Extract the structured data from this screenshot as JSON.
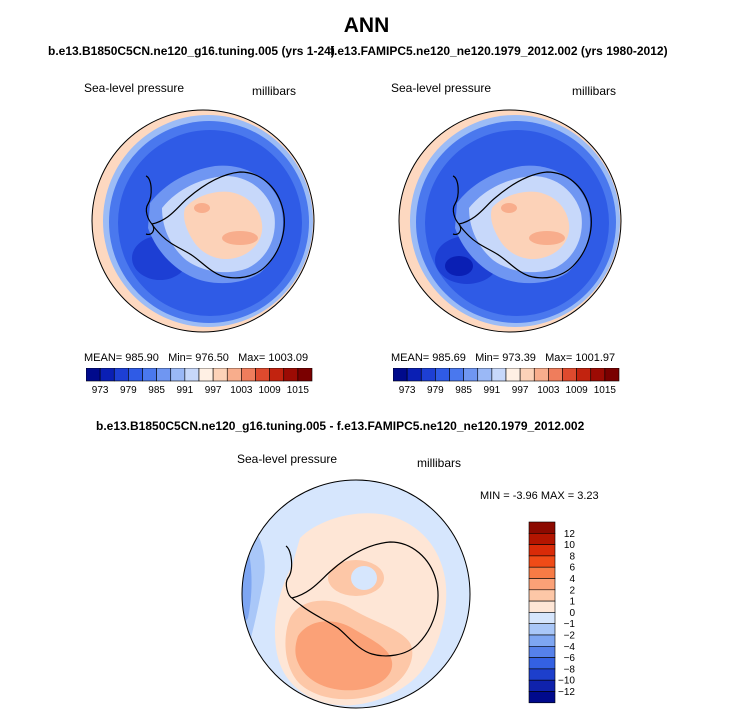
{
  "title": "ANN",
  "panels": [
    {
      "case_title": "b.e13.B1850C5CN.ne120_g16.tuning.005 (yrs 1-24)",
      "variable": "Sea-level pressure",
      "units": "millibars",
      "mean_text": "MEAN= 985.90",
      "min_text": "Min= 976.50",
      "max_text": "Max= 1003.09"
    },
    {
      "case_title": "f.e13.FAMIPC5.ne120_ne120.1979_2012.002 (yrs 1980-2012)",
      "variable": "Sea-level pressure",
      "units": "millibars",
      "mean_text": "MEAN= 985.69",
      "min_text": "Min= 973.39",
      "max_text": "Max= 1001.97"
    }
  ],
  "diff": {
    "case_title": "b.e13.B1850C5CN.ne120_g16.tuning.005 - f.e13.FAMIPC5.ne120_ne120.1979_2012.002",
    "variable": "Sea-level pressure",
    "units": "millibars",
    "stats_text": "MIN = -3.96 MAX =  3.23"
  },
  "chart_data": [
    {
      "type": "heatmap",
      "map": "south-polar-stereographic",
      "title": "Sea-level pressure",
      "units": "millibars",
      "stats": {
        "mean": 985.9,
        "min": 976.5,
        "max": 1003.09
      },
      "colorbar": {
        "levels": [
          973,
          976,
          979,
          982,
          985,
          988,
          991,
          994,
          997,
          1000,
          1003,
          1006,
          1009,
          1012,
          1015
        ],
        "tick_labels": [
          "973",
          "979",
          "985",
          "991",
          "997",
          "1003",
          "1009",
          "1015"
        ],
        "colors": [
          "#000a8c",
          "#0a1fb4",
          "#1d3fd4",
          "#2f5be6",
          "#4a78ee",
          "#6f96f2",
          "#9ab8f6",
          "#c7d8fa",
          "#fff0e4",
          "#fcd2b8",
          "#f8ad8c",
          "#ef7d5c",
          "#de4a2e",
          "#c2230f",
          "#9c0b04",
          "#7a0000"
        ]
      }
    },
    {
      "type": "heatmap",
      "map": "south-polar-stereographic",
      "title": "Sea-level pressure",
      "units": "millibars",
      "stats": {
        "mean": 985.69,
        "min": 973.39,
        "max": 1001.97
      },
      "colorbar": {
        "levels": [
          973,
          976,
          979,
          982,
          985,
          988,
          991,
          994,
          997,
          1000,
          1003,
          1006,
          1009,
          1012,
          1015
        ],
        "tick_labels": [
          "973",
          "979",
          "985",
          "991",
          "997",
          "1003",
          "1009",
          "1015"
        ],
        "colors": [
          "#000a8c",
          "#0a1fb4",
          "#1d3fd4",
          "#2f5be6",
          "#4a78ee",
          "#6f96f2",
          "#9ab8f6",
          "#c7d8fa",
          "#fff0e4",
          "#fcd2b8",
          "#f8ad8c",
          "#ef7d5c",
          "#de4a2e",
          "#c2230f",
          "#9c0b04",
          "#7a0000"
        ]
      }
    },
    {
      "type": "heatmap",
      "map": "south-polar-stereographic",
      "title": "Sea-level pressure",
      "units": "millibars",
      "stats": {
        "min": -3.96,
        "max": 3.23
      },
      "colorbar": {
        "orientation": "vertical",
        "levels": [
          -12,
          -10,
          -8,
          -6,
          -4,
          -2,
          -1,
          0,
          1,
          2,
          4,
          6,
          8,
          10,
          12
        ],
        "tick_labels": [
          "12",
          "10",
          "8",
          "6",
          "4",
          "2",
          "1",
          "0",
          "−1",
          "−2",
          "−4",
          "−6",
          "−8",
          "−10",
          "−12"
        ],
        "colors": [
          "#8c0a00",
          "#b31500",
          "#d92b08",
          "#f04b17",
          "#f77b45",
          "#fba177",
          "#fdc7a7",
          "#fee6d6",
          "#d6e6fd",
          "#a9c7f8",
          "#7ea6f2",
          "#5681ea",
          "#3461e2",
          "#1d3fcc",
          "#0f22ac",
          "#000a8c"
        ]
      }
    }
  ]
}
